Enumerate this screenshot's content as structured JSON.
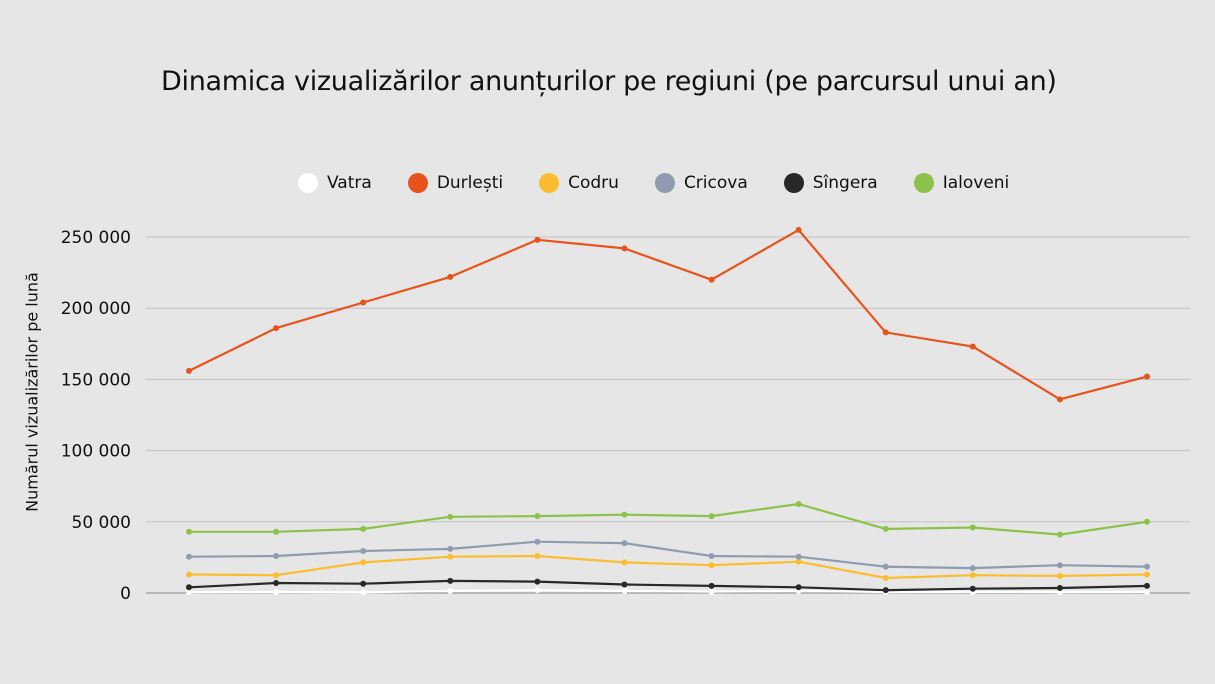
{
  "chart_data": {
    "type": "line",
    "title": "Dinamica vizualizărilor anunțurilor pe regiuni (pe parcursul unui an)",
    "xlabel": "",
    "ylabel": "Numărul vizualizărilor pe lună",
    "ylim": [
      0,
      250000
    ],
    "yticks": [
      0,
      50000,
      100000,
      150000,
      200000,
      250000
    ],
    "ytick_labels": [
      "0",
      "50 000",
      "100 000",
      "150 000",
      "200 000",
      "250 000"
    ],
    "grid": true,
    "legend_position": "top",
    "x": [
      1,
      2,
      3,
      4,
      5,
      6,
      7,
      8,
      9,
      10,
      11,
      12
    ],
    "series": [
      {
        "name": "Vatra",
        "color": "#ffffff",
        "values": [
          600,
          700,
          500,
          1500,
          2000,
          1500,
          1000,
          1500,
          700,
          800,
          700,
          800
        ]
      },
      {
        "name": "Durlești",
        "color": "#e8521b",
        "values": [
          156000,
          186000,
          204000,
          222000,
          248000,
          242000,
          220000,
          255000,
          183000,
          173000,
          136000,
          152000
        ]
      },
      {
        "name": "Codru",
        "color": "#fbbd2e",
        "values": [
          13000,
          12500,
          21500,
          25500,
          26000,
          21500,
          19500,
          22000,
          10500,
          12500,
          12000,
          13000
        ]
      },
      {
        "name": "Cricova",
        "color": "#8f9cb0",
        "values": [
          25500,
          26000,
          29500,
          31000,
          36000,
          35000,
          26000,
          25500,
          18500,
          17500,
          19500,
          18500
        ]
      },
      {
        "name": "Sîngera",
        "color": "#282828",
        "values": [
          4000,
          7000,
          6500,
          8500,
          8000,
          6000,
          5000,
          4000,
          2000,
          3000,
          3500,
          5000
        ]
      },
      {
        "name": "Ialoveni",
        "color": "#8bc34a",
        "values": [
          43000,
          43000,
          45000,
          53500,
          54000,
          55000,
          54000,
          62500,
          45000,
          46000,
          41000,
          50000
        ]
      }
    ]
  }
}
